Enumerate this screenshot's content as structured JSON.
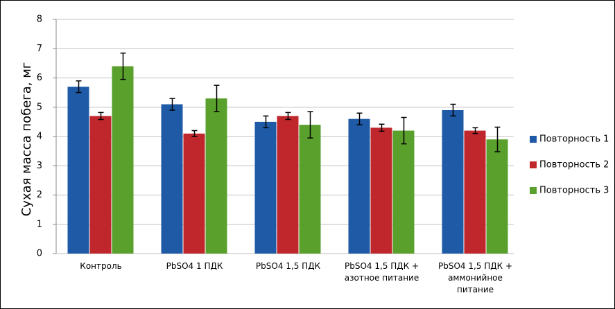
{
  "chart_data": {
    "type": "bar",
    "y_label": "Сухая масса побега, мг",
    "categories": [
      "Контроль",
      "PbSO4 1 ПДК",
      "PbSO4 1,5 ПДК",
      "PbSO4 1,5 ПДК + азотное питание",
      "PbSO4 1,5 ПДК + аммонийное питание"
    ],
    "series": [
      {
        "name": "Повторность 1",
        "color": "#1f5aa6",
        "values": [
          5.7,
          5.1,
          4.5,
          4.6,
          4.9
        ],
        "errors": [
          0.2,
          0.2,
          0.2,
          0.2,
          0.2
        ]
      },
      {
        "name": "Повторность 2",
        "color": "#c0272d",
        "values": [
          4.7,
          4.1,
          4.7,
          4.3,
          4.2
        ],
        "errors": [
          0.12,
          0.1,
          0.12,
          0.12,
          0.1
        ]
      },
      {
        "name": "Повторность 3",
        "color": "#5aa02c",
        "values": [
          6.4,
          5.3,
          4.4,
          4.2,
          3.9
        ],
        "errors": [
          0.45,
          0.45,
          0.45,
          0.45,
          0.42
        ]
      }
    ],
    "ylim": [
      0,
      8
    ],
    "yticks": [
      0,
      1,
      2,
      3,
      4,
      5,
      6,
      7,
      8
    ],
    "grid": true,
    "legend": "right"
  }
}
